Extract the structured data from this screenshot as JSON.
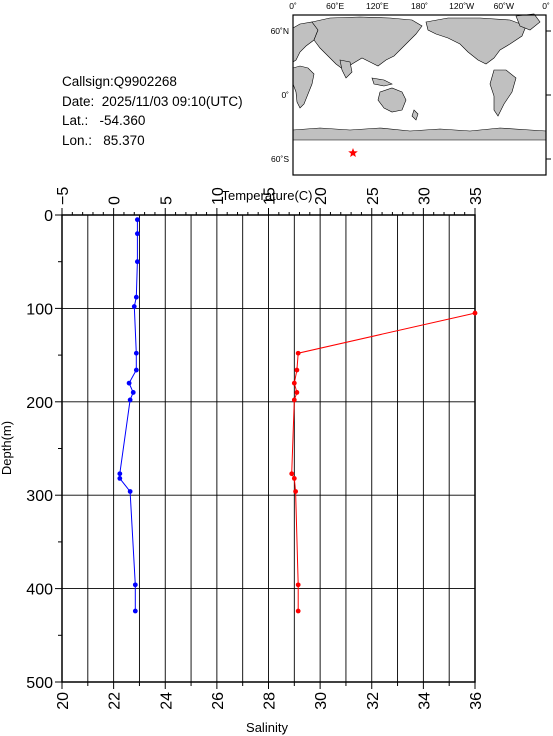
{
  "header": {
    "callsign_label": "Callsign:",
    "callsign": "Q9902268",
    "date_label": "Date:",
    "date": "2025/11/03 09:10(UTC)",
    "lat_label": "Lat.:",
    "lat": "-54.360",
    "lon_label": "Lon.:",
    "lon": "85.370"
  },
  "map": {
    "top_ticks": [
      "0˚",
      "60˚E",
      "120˚E",
      "180˚",
      "120˚W",
      "60˚W",
      "0˚"
    ],
    "lat_ticks": [
      "60˚N",
      "0˚",
      "60˚S"
    ],
    "marker": {
      "lon": 85.37,
      "lat": -54.36
    },
    "marker_color": "#ff0000",
    "land_color": "#c0c0c0"
  },
  "chart_data": {
    "type": "line",
    "ylabel": "Depth(m)",
    "ylim": [
      500,
      0
    ],
    "yticks": [
      "0",
      "100",
      "200",
      "300",
      "400",
      "500"
    ],
    "x_top": {
      "label": "Temperature(C)",
      "lim": [
        -5,
        35
      ],
      "ticks": [
        "−5",
        "0",
        "5",
        "10",
        "15",
        "20",
        "25",
        "30",
        "35"
      ]
    },
    "x_bottom": {
      "label": "Salinity",
      "lim": [
        20,
        36
      ],
      "ticks": [
        "20",
        "22",
        "24",
        "26",
        "28",
        "30",
        "32",
        "34",
        "36"
      ]
    },
    "grid": true,
    "series": [
      {
        "axis": "top",
        "color": "#0000ff",
        "points": [
          {
            "x": 2.3,
            "y": 5
          },
          {
            "x": 2.3,
            "y": 20
          },
          {
            "x": 2.3,
            "y": 50
          },
          {
            "x": 2.2,
            "y": 88
          },
          {
            "x": 2.0,
            "y": 98
          },
          {
            "x": 2.2,
            "y": 148
          },
          {
            "x": 2.2,
            "y": 166
          },
          {
            "x": 1.5,
            "y": 180
          },
          {
            "x": 1.9,
            "y": 190
          },
          {
            "x": 1.6,
            "y": 198
          },
          {
            "x": 0.6,
            "y": 277
          },
          {
            "x": 0.6,
            "y": 282
          },
          {
            "x": 1.6,
            "y": 296
          },
          {
            "x": 2.1,
            "y": 396
          },
          {
            "x": 2.1,
            "y": 424
          }
        ]
      },
      {
        "axis": "bottom",
        "color": "#ff0000",
        "points": [
          {
            "x": 36.0,
            "y": 105
          },
          {
            "x": 29.15,
            "y": 148
          },
          {
            "x": 29.1,
            "y": 166
          },
          {
            "x": 29.0,
            "y": 180
          },
          {
            "x": 29.1,
            "y": 190
          },
          {
            "x": 29.0,
            "y": 198
          },
          {
            "x": 28.9,
            "y": 277
          },
          {
            "x": 29.0,
            "y": 282
          },
          {
            "x": 29.05,
            "y": 296
          },
          {
            "x": 29.15,
            "y": 396
          },
          {
            "x": 29.15,
            "y": 424
          }
        ]
      }
    ]
  }
}
